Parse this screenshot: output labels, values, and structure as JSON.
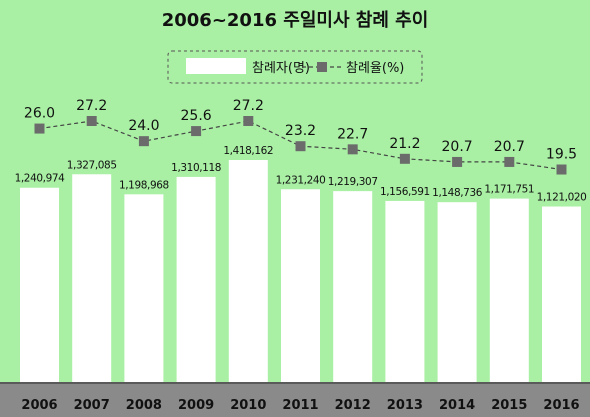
{
  "chart_data": {
    "type": "bar",
    "title": "2006~2016 주일미사 참례 추이",
    "categories": [
      "2006",
      "2007",
      "2008",
      "2009",
      "2010",
      "2011",
      "2012",
      "2013",
      "2014",
      "2015",
      "2016"
    ],
    "series": [
      {
        "name": "참례자(명)",
        "type": "bar",
        "values": [
          1240974,
          1327085,
          1198968,
          1310118,
          1418162,
          1231240,
          1219307,
          1156591,
          1148736,
          1171751,
          1121020
        ],
        "labels": [
          "1,240,974",
          "1,327,085",
          "1,198,968",
          "1,310,118",
          "1,418,162",
          "1,231,240",
          "1,219,307",
          "1,156,591",
          "1,148,736",
          "1,171,751",
          "1,121,020"
        ]
      },
      {
        "name": "참례율(%)",
        "type": "line",
        "values": [
          26.0,
          27.2,
          24.0,
          25.6,
          27.2,
          23.2,
          22.7,
          21.2,
          20.7,
          20.7,
          19.5
        ],
        "labels": [
          "26.0",
          "27.2",
          "24.0",
          "25.6",
          "27.2",
          "23.2",
          "22.7",
          "21.2",
          "20.7",
          "20.7",
          "19.5"
        ]
      }
    ],
    "legend_position": "top-center",
    "colors": {
      "background": "#a9f0a4",
      "bar": "#ffffff",
      "line": "#444444",
      "marker": "#6b6b6b",
      "axis_band": "#8a8a8a"
    }
  }
}
